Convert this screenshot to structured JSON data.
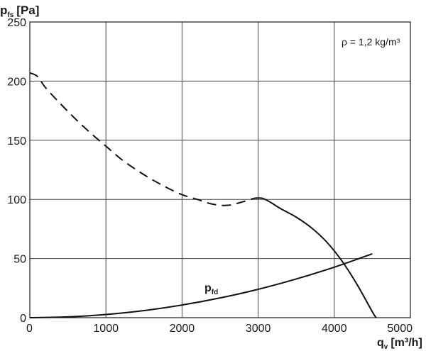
{
  "chart_data": {
    "type": "line",
    "ylabel": {
      "main": "p",
      "sub": "fs",
      "unit": "[Pa]"
    },
    "xlabel": {
      "main": "q",
      "sub": "v",
      "unit": "[m³/h]"
    },
    "xlim": [
      0,
      5000
    ],
    "ylim": [
      0,
      250
    ],
    "x_ticks": [
      0,
      1000,
      2000,
      3000,
      4000,
      5000
    ],
    "y_ticks": [
      0,
      50,
      100,
      150,
      200,
      250
    ],
    "grid": true,
    "annotation": "ρ = 1,2 kg/m³",
    "series": [
      {
        "style": "dashed",
        "color": "#111111",
        "x": [
          0,
          100,
          200,
          400,
          600,
          800,
          1000,
          1200,
          1400,
          1600,
          1800,
          2000,
          2200,
          2400,
          2600,
          2800,
          2950
        ],
        "y": [
          207,
          204,
          195,
          181,
          168,
          156,
          145,
          134,
          125,
          117,
          110,
          104,
          100,
          96,
          95,
          98,
          101
        ]
      },
      {
        "style": "solid",
        "color": "#111111",
        "x": [
          2950,
          3050,
          3150,
          3300,
          3500,
          3700,
          3900,
          4100,
          4300,
          4500,
          4550
        ],
        "y": [
          101,
          101,
          98,
          92,
          85,
          76,
          64,
          48,
          28,
          5,
          0
        ]
      },
      {
        "name": "pfd",
        "label": {
          "main": "p",
          "sub": "fd"
        },
        "style": "solid",
        "color": "#111111",
        "x": [
          0,
          500,
          1000,
          1500,
          2000,
          2500,
          3000,
          3500,
          4000,
          4500
        ],
        "y": [
          0,
          0.7,
          2.7,
          6,
          10.7,
          16.7,
          24,
          32.7,
          42.7,
          54
        ]
      }
    ]
  }
}
